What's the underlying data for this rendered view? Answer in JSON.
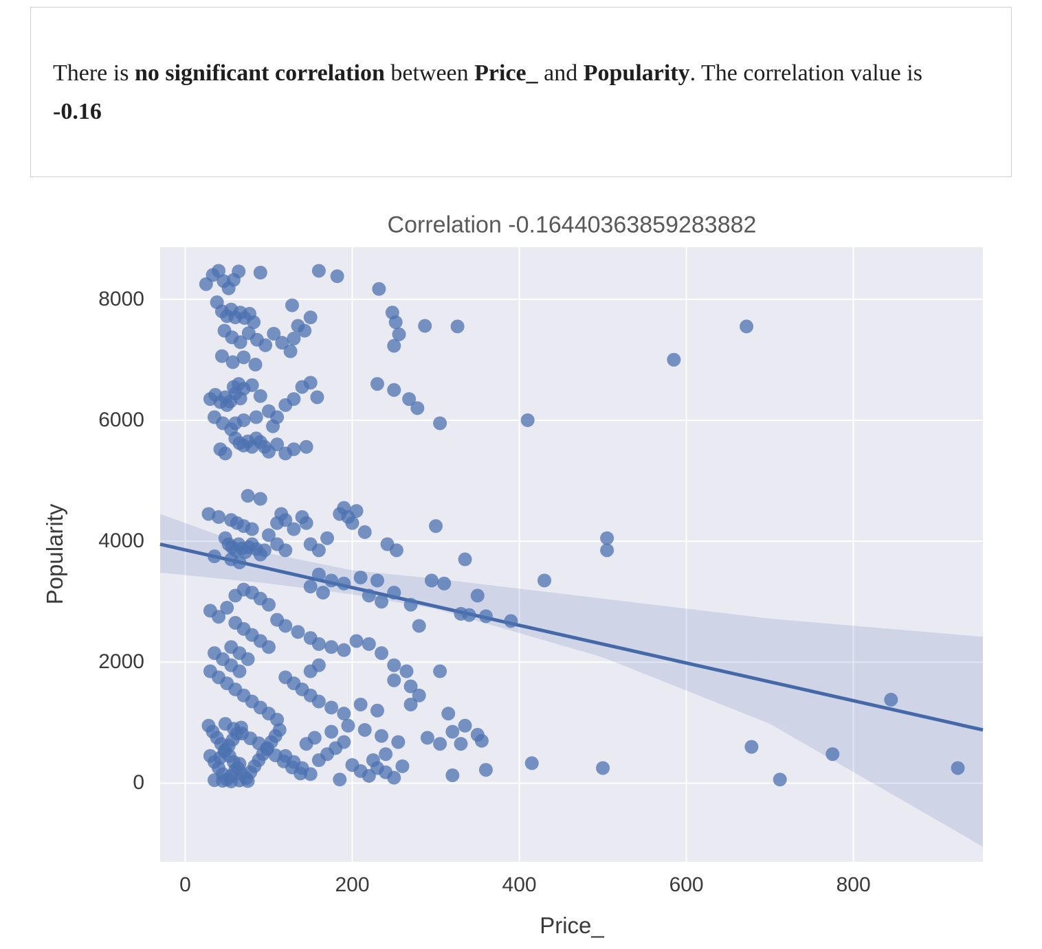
{
  "card": {
    "segments": [
      {
        "text": "There is ",
        "bold": false
      },
      {
        "text": "no significant correlation",
        "bold": true
      },
      {
        "text": " between ",
        "bold": false
      },
      {
        "text": "Price_",
        "bold": true
      },
      {
        "text": " and ",
        "bold": false
      },
      {
        "text": "Popularity",
        "bold": true
      },
      {
        "text": ". The correlation value is ",
        "bold": false
      },
      {
        "text": "-0.16",
        "bold": true
      }
    ]
  },
  "chart_data": {
    "type": "scatter",
    "title": "Correlation -0.16440363859283882",
    "xlabel": "Price_",
    "ylabel": "Popularity",
    "xlim": [
      -30,
      955
    ],
    "ylim": [
      -1300,
      8860
    ],
    "x_ticks": [
      0,
      200,
      400,
      600,
      800
    ],
    "y_ticks": [
      0,
      2000,
      4000,
      6000,
      8000
    ],
    "grid": true,
    "legend": "none",
    "plot_bg": "#eaeaf2",
    "grid_color": "#ffffff",
    "point_color": "#4c72b0",
    "line_color": "#4468a8",
    "band_opacity": 0.17,
    "regression": {
      "x": [
        -30,
        955
      ],
      "y": [
        3950,
        880
      ]
    },
    "ci_band": {
      "upper": [
        [
          -30,
          4450
        ],
        [
          100,
          3800
        ],
        [
          200,
          3520
        ],
        [
          300,
          3380
        ],
        [
          500,
          3050
        ],
        [
          700,
          2720
        ],
        [
          955,
          2420
        ]
      ],
      "lower": [
        [
          -30,
          3480
        ],
        [
          100,
          3300
        ],
        [
          200,
          3120
        ],
        [
          300,
          2880
        ],
        [
          500,
          2080
        ],
        [
          700,
          980
        ],
        [
          955,
          -1050
        ]
      ]
    },
    "points": [
      [
        25,
        8250
      ],
      [
        33,
        8400
      ],
      [
        40,
        8470
      ],
      [
        46,
        8300
      ],
      [
        52,
        8180
      ],
      [
        58,
        8320
      ],
      [
        64,
        8460
      ],
      [
        90,
        8440
      ],
      [
        38,
        7950
      ],
      [
        44,
        7800
      ],
      [
        50,
        7720
      ],
      [
        55,
        7830
      ],
      [
        60,
        7700
      ],
      [
        66,
        7780
      ],
      [
        71,
        7690
      ],
      [
        77,
        7760
      ],
      [
        82,
        7620
      ],
      [
        47,
        7480
      ],
      [
        56,
        7370
      ],
      [
        66,
        7290
      ],
      [
        76,
        7440
      ],
      [
        86,
        7330
      ],
      [
        96,
        7240
      ],
      [
        106,
        7430
      ],
      [
        116,
        7280
      ],
      [
        126,
        7140
      ],
      [
        44,
        7060
      ],
      [
        57,
        6960
      ],
      [
        70,
        7040
      ],
      [
        84,
        6920
      ],
      [
        130,
        7350
      ],
      [
        135,
        7560
      ],
      [
        160,
        8470
      ],
      [
        182,
        8380
      ],
      [
        232,
        8170
      ],
      [
        248,
        7780
      ],
      [
        252,
        7620
      ],
      [
        256,
        7420
      ],
      [
        250,
        7230
      ],
      [
        287,
        7560
      ],
      [
        326,
        7550
      ],
      [
        150,
        7700
      ],
      [
        128,
        7900
      ],
      [
        143,
        7480
      ],
      [
        30,
        6350
      ],
      [
        36,
        6420
      ],
      [
        42,
        6300
      ],
      [
        48,
        6380
      ],
      [
        54,
        6310
      ],
      [
        60,
        6440
      ],
      [
        66,
        6360
      ],
      [
        50,
        6250
      ],
      [
        58,
        6550
      ],
      [
        64,
        6600
      ],
      [
        70,
        6520
      ],
      [
        80,
        6580
      ],
      [
        90,
        6400
      ],
      [
        100,
        6150
      ],
      [
        110,
        6050
      ],
      [
        120,
        6250
      ],
      [
        130,
        6350
      ],
      [
        140,
        6550
      ],
      [
        150,
        6620
      ],
      [
        35,
        6050
      ],
      [
        45,
        5950
      ],
      [
        55,
        5850
      ],
      [
        60,
        5700
      ],
      [
        65,
        5620
      ],
      [
        70,
        5580
      ],
      [
        75,
        5650
      ],
      [
        80,
        5560
      ],
      [
        85,
        5700
      ],
      [
        90,
        5640
      ],
      [
        95,
        5560
      ],
      [
        100,
        5480
      ],
      [
        110,
        5600
      ],
      [
        120,
        5450
      ],
      [
        130,
        5520
      ],
      [
        145,
        5560
      ],
      [
        60,
        5950
      ],
      [
        70,
        6000
      ],
      [
        85,
        6050
      ],
      [
        105,
        5900
      ],
      [
        42,
        5520
      ],
      [
        48,
        5450
      ],
      [
        230,
        6600
      ],
      [
        250,
        6500
      ],
      [
        268,
        6350
      ],
      [
        278,
        6200
      ],
      [
        305,
        5950
      ],
      [
        410,
        6000
      ],
      [
        158,
        6380
      ],
      [
        28,
        4450
      ],
      [
        40,
        4400
      ],
      [
        55,
        4350
      ],
      [
        75,
        4750
      ],
      [
        90,
        4700
      ],
      [
        62,
        4300
      ],
      [
        70,
        4250
      ],
      [
        80,
        4200
      ],
      [
        48,
        4050
      ],
      [
        52,
        3950
      ],
      [
        56,
        3900
      ],
      [
        60,
        3850
      ],
      [
        64,
        3950
      ],
      [
        68,
        3880
      ],
      [
        72,
        3820
      ],
      [
        76,
        3900
      ],
      [
        80,
        3950
      ],
      [
        85,
        3870
      ],
      [
        90,
        3780
      ],
      [
        95,
        3850
      ],
      [
        100,
        4100
      ],
      [
        110,
        4300
      ],
      [
        115,
        4450
      ],
      [
        120,
        4350
      ],
      [
        130,
        4200
      ],
      [
        140,
        4400
      ],
      [
        145,
        4300
      ],
      [
        150,
        3950
      ],
      [
        160,
        3850
      ],
      [
        170,
        4050
      ],
      [
        185,
        4450
      ],
      [
        190,
        4550
      ],
      [
        195,
        4400
      ],
      [
        200,
        4300
      ],
      [
        205,
        4500
      ],
      [
        215,
        4150
      ],
      [
        110,
        3950
      ],
      [
        120,
        3850
      ],
      [
        55,
        3700
      ],
      [
        65,
        3650
      ],
      [
        35,
        3750
      ],
      [
        300,
        4250
      ],
      [
        335,
        3700
      ],
      [
        350,
        3100
      ],
      [
        330,
        2800
      ],
      [
        390,
        2680
      ],
      [
        430,
        3350
      ],
      [
        505,
        4050
      ],
      [
        505,
        3850
      ],
      [
        242,
        3950
      ],
      [
        253,
        3850
      ],
      [
        160,
        3450
      ],
      [
        175,
        3350
      ],
      [
        190,
        3300
      ],
      [
        210,
        3400
      ],
      [
        230,
        3350
      ],
      [
        250,
        3150
      ],
      [
        270,
        2950
      ],
      [
        280,
        2600
      ],
      [
        295,
        3350
      ],
      [
        310,
        3300
      ],
      [
        340,
        2780
      ],
      [
        360,
        2760
      ],
      [
        30,
        2850
      ],
      [
        40,
        2750
      ],
      [
        50,
        2900
      ],
      [
        60,
        3100
      ],
      [
        70,
        3200
      ],
      [
        80,
        3150
      ],
      [
        90,
        3050
      ],
      [
        100,
        2950
      ],
      [
        60,
        2650
      ],
      [
        70,
        2550
      ],
      [
        80,
        2450
      ],
      [
        90,
        2350
      ],
      [
        100,
        2250
      ],
      [
        55,
        2250
      ],
      [
        65,
        2150
      ],
      [
        75,
        2050
      ],
      [
        110,
        2700
      ],
      [
        120,
        2600
      ],
      [
        135,
        2500
      ],
      [
        150,
        2400
      ],
      [
        160,
        2300
      ],
      [
        175,
        2250
      ],
      [
        190,
        2200
      ],
      [
        205,
        2350
      ],
      [
        220,
        2300
      ],
      [
        235,
        2150
      ],
      [
        250,
        1950
      ],
      [
        265,
        1850
      ],
      [
        45,
        2050
      ],
      [
        35,
        2150
      ],
      [
        150,
        3250
      ],
      [
        165,
        3150
      ],
      [
        220,
        3100
      ],
      [
        235,
        3000
      ],
      [
        30,
        1850
      ],
      [
        40,
        1750
      ],
      [
        50,
        1650
      ],
      [
        60,
        1550
      ],
      [
        70,
        1450
      ],
      [
        80,
        1350
      ],
      [
        90,
        1250
      ],
      [
        100,
        1150
      ],
      [
        110,
        1050
      ],
      [
        120,
        1750
      ],
      [
        130,
        1650
      ],
      [
        140,
        1550
      ],
      [
        150,
        1450
      ],
      [
        160,
        1350
      ],
      [
        175,
        1250
      ],
      [
        190,
        1150
      ],
      [
        210,
        1300
      ],
      [
        230,
        1200
      ],
      [
        250,
        1700
      ],
      [
        270,
        1600
      ],
      [
        280,
        1450
      ],
      [
        270,
        1300
      ],
      [
        305,
        1850
      ],
      [
        315,
        1150
      ],
      [
        55,
        1950
      ],
      [
        65,
        1850
      ],
      [
        150,
        1850
      ],
      [
        160,
        1950
      ],
      [
        28,
        950
      ],
      [
        33,
        850
      ],
      [
        38,
        750
      ],
      [
        43,
        650
      ],
      [
        48,
        550
      ],
      [
        53,
        450
      ],
      [
        58,
        350
      ],
      [
        63,
        250
      ],
      [
        68,
        150
      ],
      [
        73,
        80
      ],
      [
        78,
        180
      ],
      [
        83,
        280
      ],
      [
        88,
        380
      ],
      [
        93,
        480
      ],
      [
        98,
        580
      ],
      [
        103,
        680
      ],
      [
        108,
        780
      ],
      [
        113,
        880
      ],
      [
        30,
        450
      ],
      [
        35,
        350
      ],
      [
        40,
        250
      ],
      [
        45,
        150
      ],
      [
        50,
        60
      ],
      [
        55,
        120
      ],
      [
        60,
        220
      ],
      [
        65,
        320
      ],
      [
        42,
        420
      ],
      [
        47,
        520
      ],
      [
        52,
        620
      ],
      [
        57,
        720
      ],
      [
        62,
        820
      ],
      [
        67,
        920
      ],
      [
        120,
        450
      ],
      [
        130,
        350
      ],
      [
        140,
        250
      ],
      [
        150,
        150
      ],
      [
        160,
        380
      ],
      [
        170,
        480
      ],
      [
        180,
        580
      ],
      [
        190,
        680
      ],
      [
        200,
        300
      ],
      [
        210,
        200
      ],
      [
        220,
        120
      ],
      [
        230,
        250
      ],
      [
        240,
        180
      ],
      [
        250,
        90
      ],
      [
        260,
        280
      ],
      [
        185,
        60
      ],
      [
        145,
        650
      ],
      [
        155,
        750
      ],
      [
        175,
        850
      ],
      [
        195,
        950
      ],
      [
        215,
        880
      ],
      [
        235,
        780
      ],
      [
        255,
        680
      ],
      [
        240,
        480
      ],
      [
        225,
        380
      ],
      [
        48,
        980
      ],
      [
        58,
        900
      ],
      [
        68,
        820
      ],
      [
        78,
        740
      ],
      [
        88,
        660
      ],
      [
        98,
        560
      ],
      [
        108,
        460
      ],
      [
        118,
        360
      ],
      [
        128,
        260
      ],
      [
        138,
        160
      ],
      [
        35,
        50
      ],
      [
        45,
        40
      ],
      [
        55,
        30
      ],
      [
        65,
        45
      ],
      [
        75,
        35
      ],
      [
        290,
        750
      ],
      [
        305,
        650
      ],
      [
        320,
        850
      ],
      [
        335,
        950
      ],
      [
        350,
        800
      ],
      [
        330,
        650
      ],
      [
        360,
        220
      ],
      [
        320,
        130
      ],
      [
        415,
        330
      ],
      [
        500,
        250
      ],
      [
        355,
        700
      ],
      [
        585,
        7000
      ],
      [
        672,
        7550
      ],
      [
        845,
        1380
      ],
      [
        775,
        480
      ],
      [
        925,
        250
      ],
      [
        712,
        60
      ],
      [
        678,
        600
      ]
    ]
  }
}
